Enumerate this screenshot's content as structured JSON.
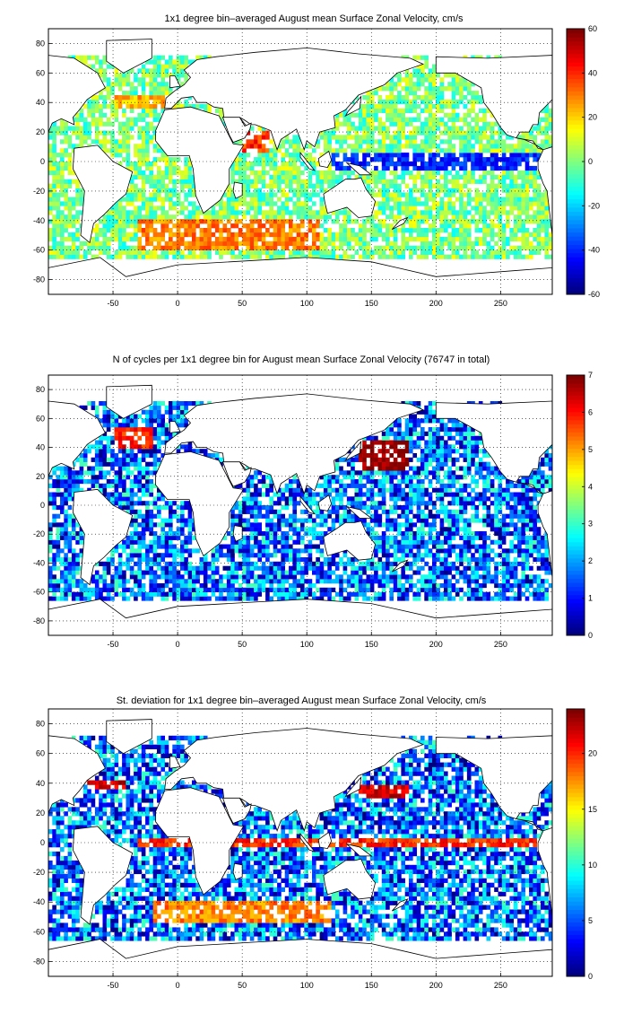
{
  "chart_data": [
    {
      "type": "heatmap",
      "title": "1x1 degree bin–averaged August mean Surface Zonal Velocity, cm/s",
      "xlim": [
        -100,
        290
      ],
      "ylim": [
        -90,
        90
      ],
      "x_ticks": [
        "-50",
        "0",
        "50",
        "100",
        "150",
        "200",
        "250"
      ],
      "y_ticks": [
        "80",
        "60",
        "40",
        "20",
        "0",
        "-20",
        "-40",
        "-60",
        "-80"
      ],
      "grid": true,
      "colorbar": {
        "range": [
          -60,
          60
        ],
        "ticks": [
          "60",
          "40",
          "20",
          "0",
          "-20",
          "-40",
          "-60"
        ],
        "colormap": "jet"
      },
      "features": [
        {
          "lon_range": [
            120,
            290
          ],
          "lat_range": [
            -5,
            5
          ],
          "value": -40
        },
        {
          "lon_range": [
            -30,
            110
          ],
          "lat_range": [
            -60,
            -40
          ],
          "value": 30
        },
        {
          "lon_range": [
            -50,
            0
          ],
          "lat_range": [
            35,
            45
          ],
          "value": 25
        },
        {
          "lon_range": [
            50,
            70
          ],
          "lat_range": [
            5,
            20
          ],
          "value": 40
        }
      ]
    },
    {
      "type": "heatmap",
      "title": "N of cycles per 1x1 degree bin for August mean Surface Zonal Velocity (76747 in total)",
      "xlim": [
        -100,
        290
      ],
      "ylim": [
        -90,
        90
      ],
      "x_ticks": [
        "-50",
        "0",
        "50",
        "100",
        "150",
        "200",
        "250"
      ],
      "y_ticks": [
        "80",
        "60",
        "40",
        "20",
        "0",
        "-20",
        "-40",
        "-60",
        "-80"
      ],
      "grid": true,
      "colorbar": {
        "range": [
          0,
          7
        ],
        "ticks": [
          "7",
          "6",
          "5",
          "4",
          "3",
          "2",
          "1",
          "0"
        ],
        "colormap": "jet"
      },
      "total_cycles": 76747,
      "features": [
        {
          "lon_range": [
            140,
            180
          ],
          "lat_range": [
            25,
            45
          ],
          "value": 7
        },
        {
          "lon_range": [
            -50,
            -20
          ],
          "lat_range": [
            40,
            55
          ],
          "value": 6
        }
      ]
    },
    {
      "type": "heatmap",
      "title": "St. deviation for 1x1 degree bin–averaged August mean Surface Zonal Velocity, cm/s",
      "xlim": [
        -100,
        290
      ],
      "ylim": [
        -90,
        90
      ],
      "x_ticks": [
        "-50",
        "0",
        "50",
        "100",
        "150",
        "200",
        "250"
      ],
      "y_ticks": [
        "80",
        "60",
        "40",
        "20",
        "0",
        "-20",
        "-40",
        "-60",
        "-80"
      ],
      "grid": true,
      "colorbar": {
        "range": [
          0,
          24
        ],
        "ticks": [
          "20",
          "15",
          "10",
          "5",
          "0"
        ],
        "colormap": "jet"
      },
      "features": [
        {
          "lon_range": [
            140,
            180
          ],
          "lat_range": [
            30,
            40
          ],
          "value": 22
        },
        {
          "lon_range": [
            -70,
            -40
          ],
          "lat_range": [
            35,
            42
          ],
          "value": 22
        },
        {
          "lon_range": [
            -30,
            280
          ],
          "lat_range": [
            -3,
            3
          ],
          "value": 20
        },
        {
          "lon_range": [
            -20,
            120
          ],
          "lat_range": [
            -55,
            -40
          ],
          "value": 18
        }
      ]
    }
  ]
}
